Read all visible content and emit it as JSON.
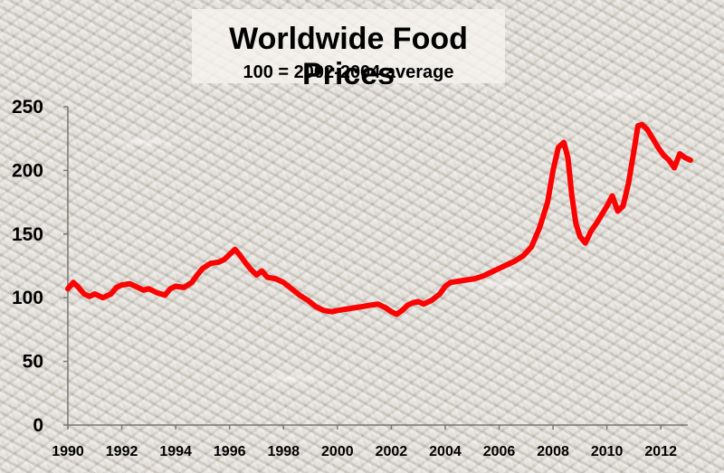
{
  "chart_data": {
    "type": "line",
    "title": "Worldwide Food Prices",
    "subtitle": "100 = 2002-2004 average",
    "xlabel": "",
    "ylabel": "",
    "xlim": [
      1990,
      2013
    ],
    "ylim": [
      0,
      250
    ],
    "y_ticks": [
      0,
      50,
      100,
      150,
      200,
      250
    ],
    "x_ticks": [
      1990,
      1992,
      1994,
      1996,
      1998,
      2000,
      2002,
      2004,
      2006,
      2008,
      2010,
      2012
    ],
    "grid": false,
    "legend": "none",
    "series": [
      {
        "color": "#ff0000",
        "x": [
          1990.0,
          1990.2,
          1990.4,
          1990.6,
          1990.8,
          1991.0,
          1991.3,
          1991.6,
          1991.8,
          1992.0,
          1992.3,
          1992.6,
          1992.8,
          1993.0,
          1993.3,
          1993.6,
          1993.8,
          1994.0,
          1994.3,
          1994.6,
          1994.8,
          1995.0,
          1995.3,
          1995.6,
          1995.8,
          1996.0,
          1996.2,
          1996.4,
          1996.6,
          1996.8,
          1997.0,
          1997.2,
          1997.4,
          1997.7,
          1998.0,
          1998.3,
          1998.6,
          1998.9,
          1999.2,
          1999.5,
          1999.8,
          2000.0,
          2000.3,
          2000.6,
          2000.9,
          2001.2,
          2001.5,
          2001.8,
          2002.0,
          2002.2,
          2002.4,
          2002.6,
          2002.8,
          2003.0,
          2003.2,
          2003.5,
          2003.8,
          2004.0,
          2004.2,
          2004.5,
          2004.8,
          2005.1,
          2005.4,
          2005.7,
          2006.0,
          2006.3,
          2006.6,
          2006.9,
          2007.2,
          2007.5,
          2007.8,
          2008.0,
          2008.2,
          2008.4,
          2008.55,
          2008.7,
          2008.85,
          2009.0,
          2009.2,
          2009.4,
          2009.6,
          2009.8,
          2010.0,
          2010.2,
          2010.4,
          2010.6,
          2010.8,
          2011.0,
          2011.15,
          2011.3,
          2011.5,
          2011.7,
          2011.9,
          2012.1,
          2012.3,
          2012.5,
          2012.7,
          2012.9,
          2013.1
        ],
        "values": [
          107,
          112,
          108,
          103,
          101,
          103,
          100,
          103,
          108,
          110,
          111,
          108,
          106,
          107,
          104,
          102,
          107,
          109,
          108,
          112,
          118,
          123,
          127,
          128,
          130,
          134,
          138,
          133,
          127,
          122,
          118,
          121,
          116,
          115,
          112,
          107,
          102,
          98,
          93,
          90,
          89,
          90,
          91,
          92,
          93,
          94,
          95,
          92,
          89,
          87,
          90,
          94,
          96,
          97,
          95,
          98,
          103,
          109,
          112,
          113,
          114,
          115,
          117,
          120,
          123,
          126,
          129,
          133,
          140,
          155,
          175,
          200,
          218,
          222,
          210,
          180,
          158,
          148,
          143,
          152,
          158,
          165,
          172,
          180,
          168,
          172,
          190,
          215,
          235,
          236,
          232,
          225,
          218,
          212,
          208,
          202,
          213,
          210,
          208
        ]
      }
    ]
  }
}
